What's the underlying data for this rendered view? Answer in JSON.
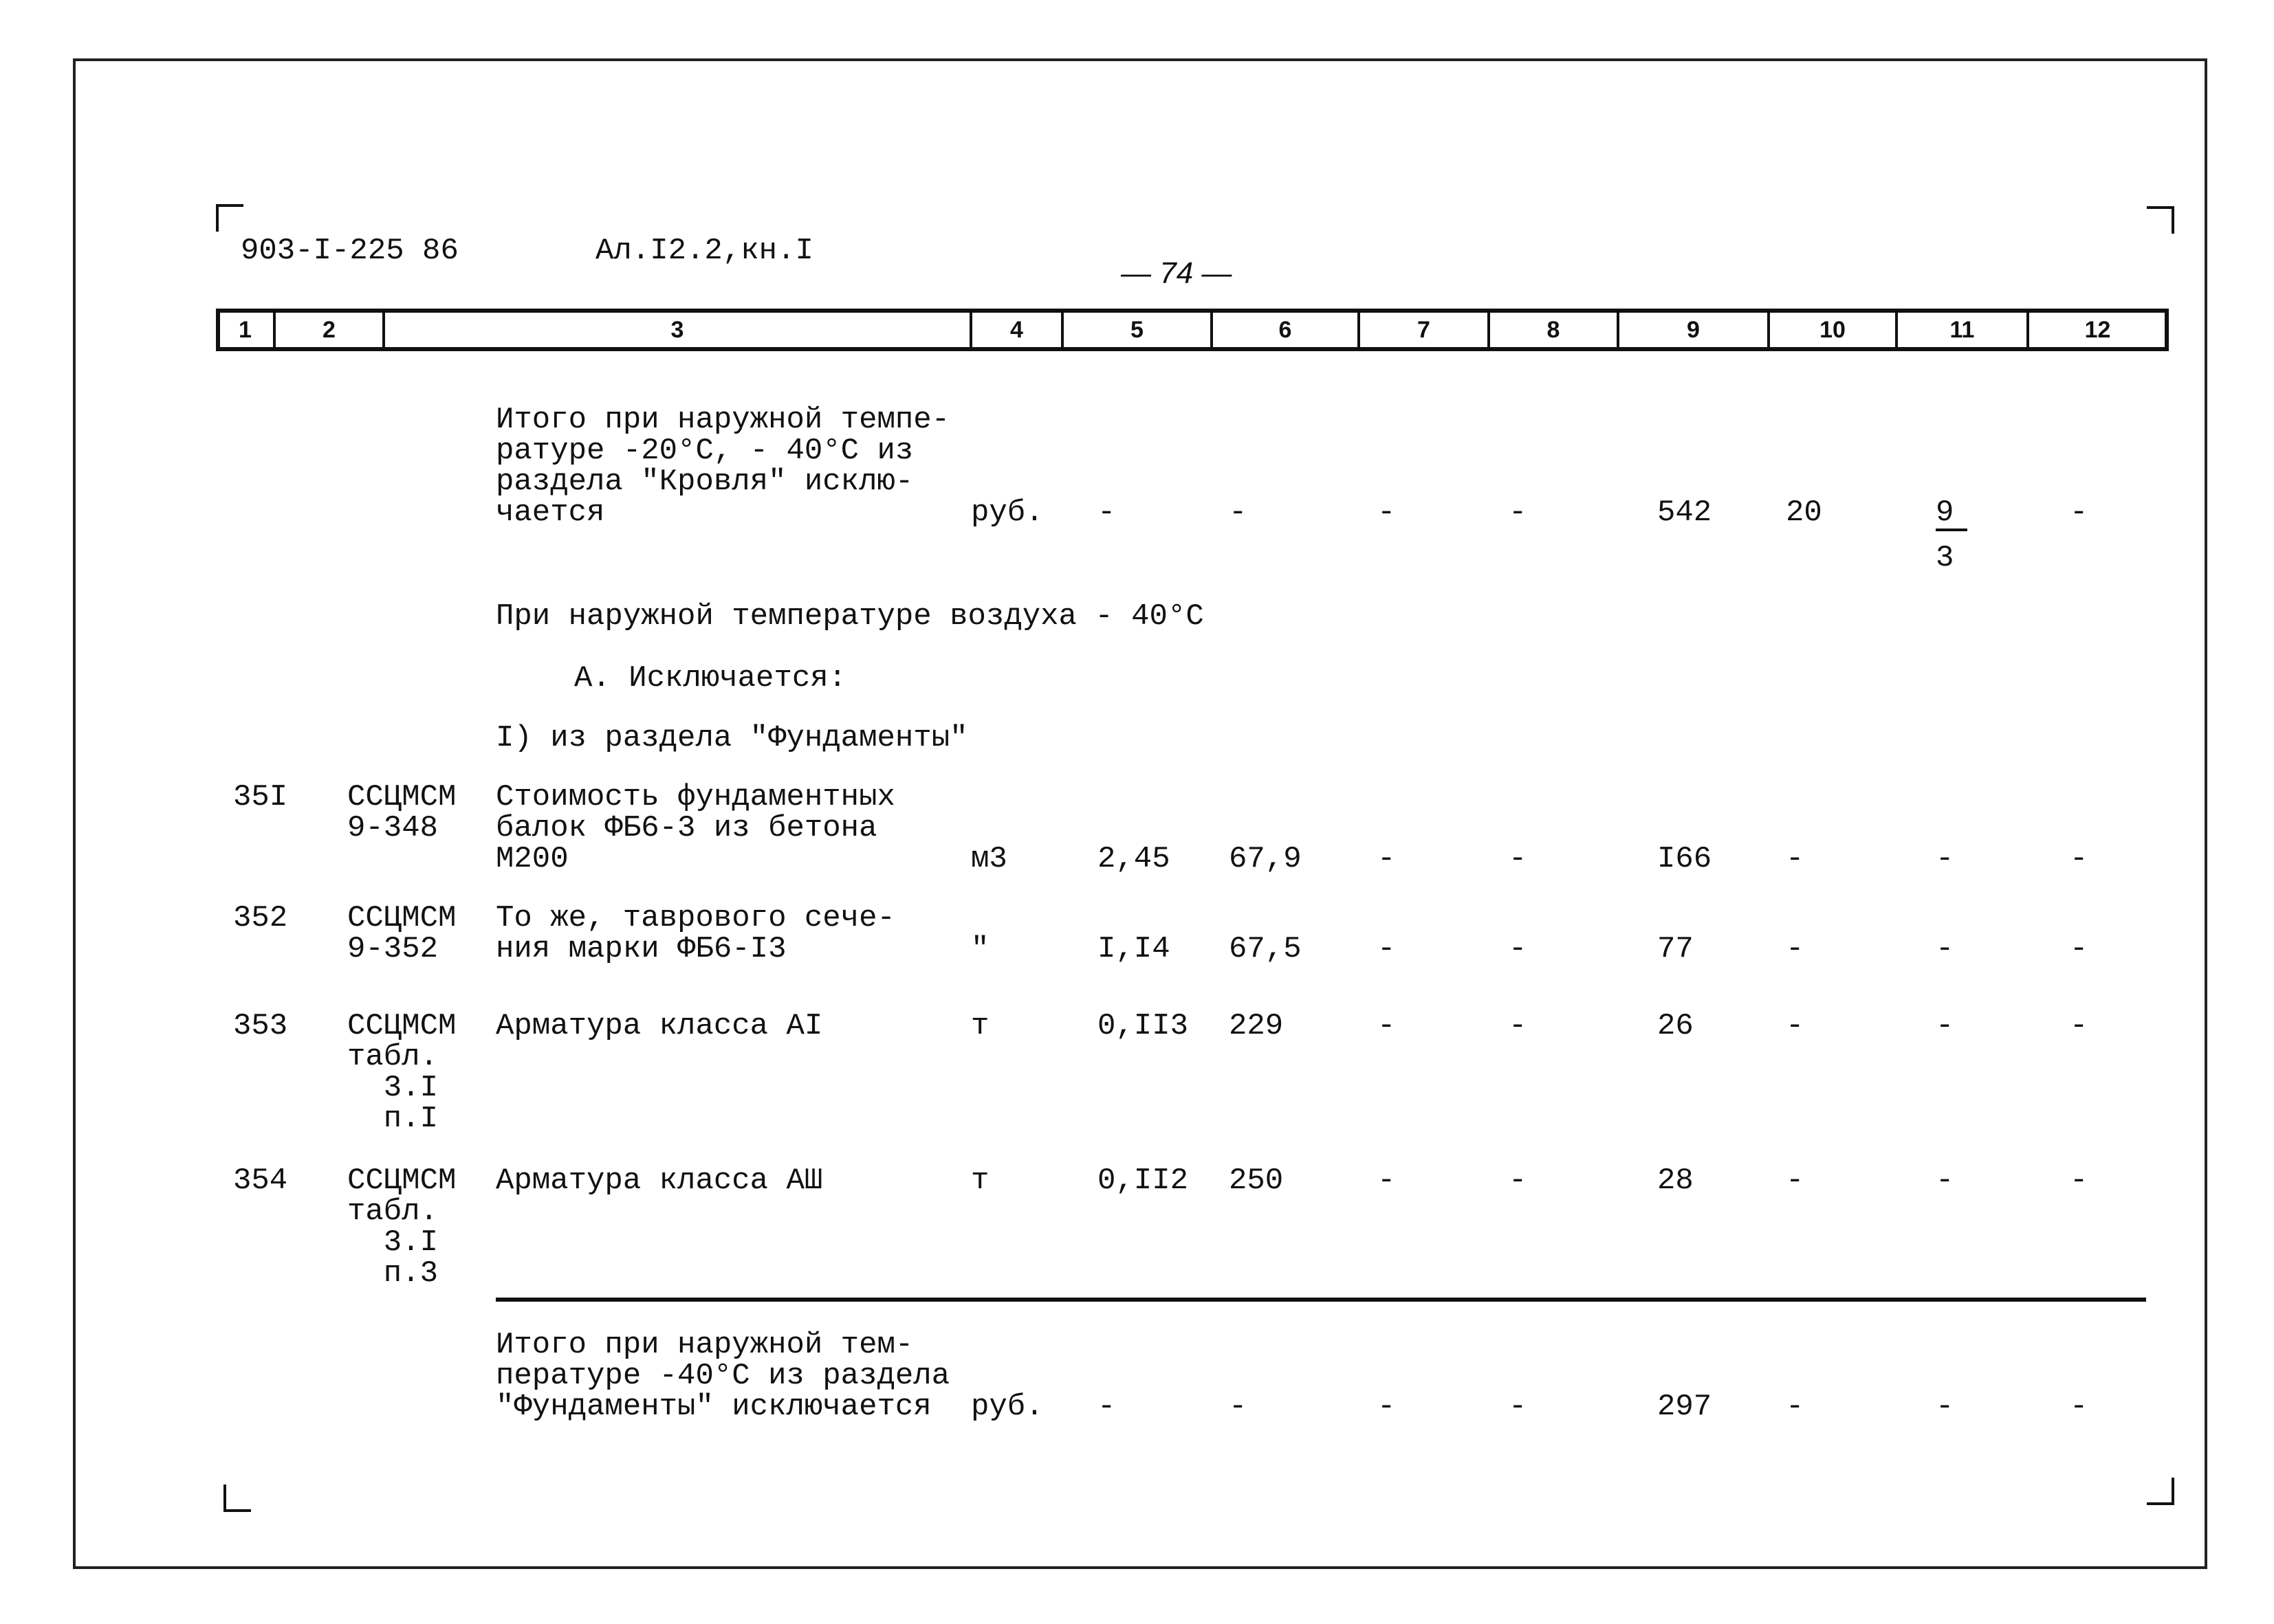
{
  "header": {
    "doc_code": "903-I-225 86",
    "album": "Ал.I2.2,кн.I",
    "page_number": "— 74 —"
  },
  "columns": [
    "1",
    "2",
    "3",
    "4",
    "5",
    "6",
    "7",
    "8",
    "9",
    "10",
    "11",
    "12"
  ],
  "sections": {
    "total_roof": [
      "Итого при наружной темпе-",
      "ратуре -20°С, - 40°С из",
      "раздела \"Кровля\" исклю-",
      "чается"
    ],
    "total_roof_values": {
      "unit": "руб.",
      "c5": "-",
      "c6": "-",
      "c7": "-",
      "c8": "-",
      "c9": "542",
      "c10": "20",
      "c11_num": "9",
      "c11_den": "3",
      "c12": "-"
    },
    "temp_heading": "При наружной температуре воздуха - 40°С",
    "excluded_heading": "А. Исключается:",
    "subsection": "I) из раздела \"Фундаменты\""
  },
  "rows": [
    {
      "num": "35I",
      "code": [
        "ССЦМСМ",
        "9-348"
      ],
      "desc": [
        "Стоимость фундаментных",
        "балок ФБ6-3 из бетона",
        "М200"
      ],
      "unit": "м3",
      "c5": "2,45",
      "c6": "67,9",
      "c7": "-",
      "c8": "-",
      "c9": "I66",
      "c10": "-",
      "c11": "-",
      "c12": "-"
    },
    {
      "num": "352",
      "code": [
        "ССЦМСМ",
        "9-352"
      ],
      "desc": [
        "То же, таврового сече-",
        "ния марки ФБ6-I3"
      ],
      "unit": "\"",
      "c5": "I,I4",
      "c6": "67,5",
      "c7": "-",
      "c8": "-",
      "c9": "77",
      "c10": "-",
      "c11": "-",
      "c12": "-"
    },
    {
      "num": "353",
      "code": [
        "ССЦМСМ",
        "табл.",
        "  3.I",
        "  п.I"
      ],
      "desc": [
        "Арматура класса АI"
      ],
      "unit": "т",
      "c5": "0,II3",
      "c6": "229",
      "c7": "-",
      "c8": "-",
      "c9": "26",
      "c10": "-",
      "c11": "-",
      "c12": "-"
    },
    {
      "num": "354",
      "code": [
        "ССЦМСМ",
        "табл.",
        "  3.I",
        "  п.3"
      ],
      "desc": [
        "Арматура класса АШ"
      ],
      "unit": "т",
      "c5": "0,II2",
      "c6": "250",
      "c7": "-",
      "c8": "-",
      "c9": "28",
      "c10": "-",
      "c11": "-",
      "c12": "-"
    }
  ],
  "total_foundation": {
    "text": [
      "Итого при наружной тем-",
      "пературе -40°С из раздела",
      "\"Фундаменты\" исключается"
    ],
    "unit": "руб.",
    "c5": "-",
    "c6": "-",
    "c7": "-",
    "c8": "-",
    "c9": "297",
    "c10": "-",
    "c11": "-",
    "c12": "-"
  }
}
